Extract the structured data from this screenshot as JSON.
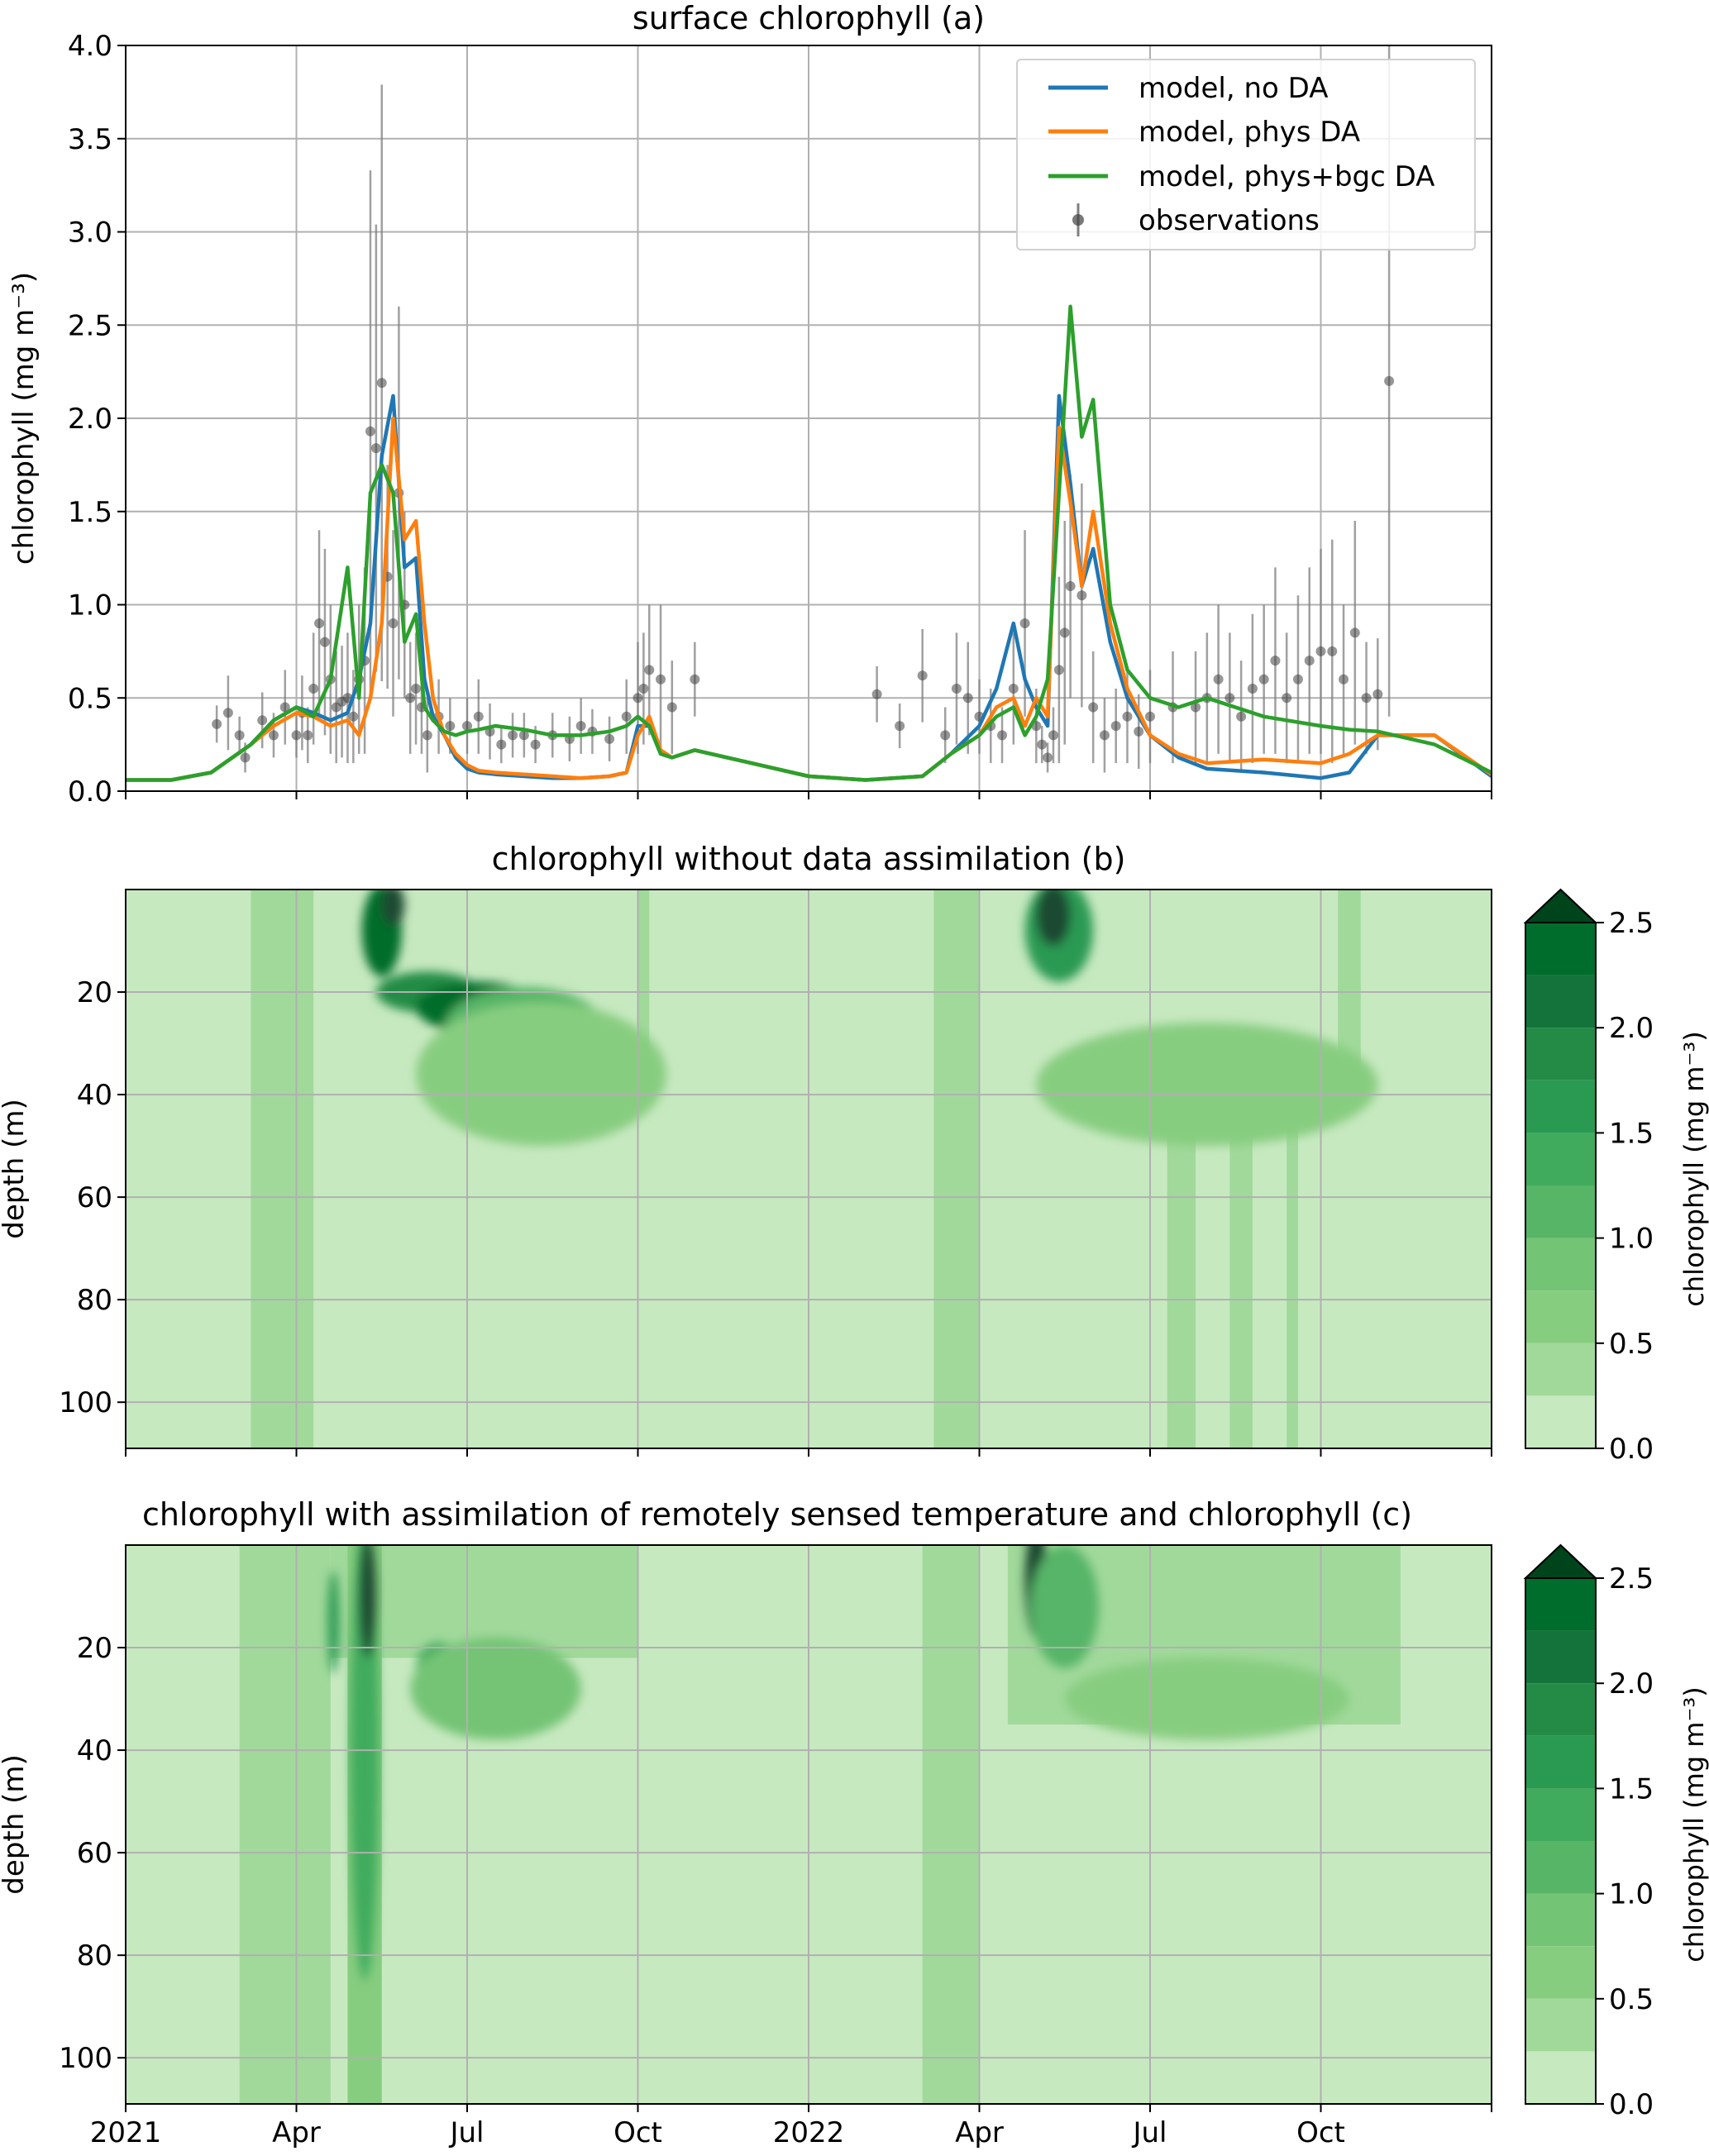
{
  "colors": {
    "no_da": "#1f77b4",
    "phys_da": "#ff7f0e",
    "phys_bgc_da": "#2ca02c",
    "observations": "#404040",
    "grid": "#b0b0b0",
    "cmap": [
      "#c7e9c0",
      "#a1d99b",
      "#87cd80",
      "#74c476",
      "#56b567",
      "#41ab5d",
      "#2a9a52",
      "#238b45",
      "#13733a",
      "#006d2c",
      "#1a5c3a",
      "#1d4a30",
      "#00441b"
    ]
  },
  "chart_data": [
    {
      "panel": "a",
      "type": "line",
      "title": "surface chlorophyll (a)",
      "ylabel": "chlorophyll (mg m⁻³)",
      "ylim": [
        0,
        4
      ],
      "yticks": [
        "0.0",
        "0.5",
        "1.0",
        "1.5",
        "2.0",
        "2.5",
        "3.0",
        "3.5",
        "4.0"
      ],
      "ytick_values": [
        0,
        0.5,
        1,
        1.5,
        2,
        2.5,
        3,
        3.5,
        4
      ],
      "x_unit": "months since 2021-01-01",
      "xlim": [
        0,
        24
      ],
      "grid": true,
      "legend_placement": "top-right",
      "series": [
        {
          "name": "model, no DA",
          "color_key": "no_da",
          "x": [
            0,
            0.8,
            1.5,
            2.2,
            2.6,
            3.0,
            3.3,
            3.6,
            3.9,
            4.1,
            4.3,
            4.5,
            4.7,
            4.9,
            5.1,
            5.25,
            5.4,
            5.5,
            5.6,
            5.8,
            6.0,
            6.2,
            6.5,
            7.0,
            7.5,
            8.0,
            8.5,
            8.8,
            9.0,
            9.2,
            9.4,
            9.6,
            10,
            11,
            12,
            13,
            14,
            14.5,
            15,
            15.3,
            15.6,
            15.8,
            16.0,
            16.2,
            16.4,
            16.6,
            16.8,
            17.0,
            17.3,
            17.6,
            18,
            18.5,
            19,
            20,
            21,
            21.5,
            22,
            23,
            24
          ],
          "y": [
            0.06,
            0.06,
            0.1,
            0.25,
            0.38,
            0.45,
            0.42,
            0.38,
            0.42,
            0.6,
            0.9,
            1.8,
            2.12,
            1.2,
            1.25,
            0.6,
            0.4,
            0.35,
            0.3,
            0.18,
            0.12,
            0.1,
            0.09,
            0.08,
            0.07,
            0.07,
            0.08,
            0.1,
            0.35,
            0.35,
            0.2,
            0.18,
            0.22,
            0.15,
            0.08,
            0.06,
            0.08,
            0.2,
            0.35,
            0.55,
            0.9,
            0.6,
            0.45,
            0.35,
            2.12,
            1.65,
            1.1,
            1.3,
            0.8,
            0.5,
            0.3,
            0.18,
            0.12,
            0.1,
            0.07,
            0.1,
            0.3,
            0.3,
            0.08
          ]
        },
        {
          "name": "model, phys DA",
          "color_key": "phys_da",
          "x": [
            0,
            0.8,
            1.5,
            2.2,
            2.6,
            3.0,
            3.3,
            3.6,
            3.9,
            4.1,
            4.3,
            4.5,
            4.7,
            4.9,
            5.1,
            5.25,
            5.4,
            5.5,
            5.6,
            5.8,
            6.0,
            6.2,
            6.5,
            7.0,
            7.5,
            8.0,
            8.5,
            8.8,
            9.0,
            9.2,
            9.4,
            9.6,
            10,
            11,
            12,
            13,
            14,
            14.5,
            15,
            15.3,
            15.6,
            15.8,
            16.0,
            16.2,
            16.4,
            16.6,
            16.8,
            17.0,
            17.3,
            17.6,
            18,
            18.5,
            19,
            20,
            21,
            21.5,
            22,
            23,
            24
          ],
          "y": [
            0.06,
            0.06,
            0.1,
            0.25,
            0.35,
            0.42,
            0.4,
            0.35,
            0.38,
            0.3,
            0.5,
            0.9,
            2.0,
            1.35,
            1.45,
            0.9,
            0.5,
            0.4,
            0.3,
            0.2,
            0.14,
            0.11,
            0.1,
            0.09,
            0.08,
            0.07,
            0.08,
            0.1,
            0.3,
            0.4,
            0.22,
            0.18,
            0.22,
            0.15,
            0.08,
            0.06,
            0.08,
            0.2,
            0.3,
            0.45,
            0.5,
            0.35,
            0.5,
            0.4,
            1.95,
            1.55,
            1.1,
            1.5,
            0.9,
            0.55,
            0.3,
            0.2,
            0.15,
            0.17,
            0.15,
            0.2,
            0.3,
            0.3,
            0.09
          ]
        },
        {
          "name": "model, phys+bgc DA",
          "color_key": "phys_bgc_da",
          "x": [
            0,
            0.8,
            1.5,
            2.2,
            2.6,
            3.0,
            3.3,
            3.6,
            3.9,
            4.1,
            4.3,
            4.5,
            4.7,
            4.9,
            5.1,
            5.25,
            5.4,
            5.5,
            5.6,
            5.8,
            6.0,
            6.2,
            6.5,
            7.0,
            7.5,
            8.0,
            8.5,
            8.8,
            9.0,
            9.2,
            9.4,
            9.6,
            10,
            11,
            12,
            13,
            14,
            14.5,
            15,
            15.3,
            15.6,
            15.8,
            16.0,
            16.2,
            16.4,
            16.6,
            16.8,
            17.0,
            17.3,
            17.6,
            18,
            18.5,
            19,
            20,
            21,
            21.5,
            22,
            23,
            24
          ],
          "y": [
            0.06,
            0.06,
            0.1,
            0.25,
            0.38,
            0.45,
            0.4,
            0.6,
            1.2,
            0.5,
            1.6,
            1.75,
            1.6,
            0.8,
            0.95,
            0.45,
            0.38,
            0.35,
            0.32,
            0.3,
            0.32,
            0.33,
            0.35,
            0.33,
            0.3,
            0.3,
            0.32,
            0.35,
            0.4,
            0.35,
            0.2,
            0.18,
            0.22,
            0.15,
            0.08,
            0.06,
            0.08,
            0.2,
            0.3,
            0.4,
            0.45,
            0.3,
            0.4,
            0.6,
            1.6,
            2.6,
            1.9,
            2.1,
            1.0,
            0.65,
            0.5,
            0.45,
            0.5,
            0.4,
            0.35,
            0.33,
            0.32,
            0.25,
            0.1
          ]
        },
        {
          "name": "observations",
          "color_key": "observations",
          "kind": "errorbar",
          "x": [
            1.6,
            1.8,
            2.0,
            2.1,
            2.4,
            2.6,
            2.8,
            3.0,
            3.1,
            3.2,
            3.3,
            3.4,
            3.5,
            3.6,
            3.7,
            3.8,
            3.9,
            4.0,
            4.1,
            4.2,
            4.3,
            4.4,
            4.5,
            4.6,
            4.7,
            4.8,
            4.9,
            5.0,
            5.1,
            5.2,
            5.3,
            5.5,
            5.7,
            6.0,
            6.2,
            6.4,
            6.6,
            6.8,
            7.0,
            7.2,
            7.5,
            7.8,
            8.0,
            8.2,
            8.5,
            8.8,
            9.0,
            9.1,
            9.2,
            9.4,
            9.6,
            10.0,
            13.2,
            13.6,
            14.0,
            14.4,
            14.6,
            14.8,
            15.0,
            15.2,
            15.4,
            15.6,
            15.8,
            16.0,
            16.1,
            16.2,
            16.3,
            16.4,
            16.5,
            16.6,
            16.8,
            17.0,
            17.2,
            17.4,
            17.6,
            17.8,
            18.0,
            18.4,
            18.8,
            19.0,
            19.2,
            19.4,
            19.6,
            19.8,
            20.0,
            20.2,
            20.4,
            20.6,
            20.8,
            21.0,
            21.2,
            21.4,
            21.6,
            21.8,
            22.0,
            22.2
          ],
          "y": [
            0.36,
            0.42,
            0.3,
            0.18,
            0.38,
            0.3,
            0.45,
            0.3,
            0.42,
            0.3,
            0.55,
            0.9,
            0.8,
            0.6,
            0.45,
            0.48,
            0.5,
            0.4,
            0.6,
            0.7,
            1.93,
            1.84,
            2.19,
            1.15,
            0.9,
            1.6,
            1.0,
            0.5,
            0.55,
            0.45,
            0.3,
            0.4,
            0.35,
            0.35,
            0.4,
            0.32,
            0.25,
            0.3,
            0.3,
            0.25,
            0.3,
            0.28,
            0.35,
            0.32,
            0.28,
            0.4,
            0.5,
            0.55,
            0.65,
            0.6,
            0.45,
            0.6,
            0.52,
            0.35,
            0.62,
            0.3,
            0.55,
            0.5,
            0.4,
            0.35,
            0.3,
            0.55,
            0.9,
            0.35,
            0.25,
            0.18,
            0.3,
            0.65,
            0.85,
            1.1,
            1.05,
            0.45,
            0.3,
            0.35,
            0.4,
            0.32,
            0.4,
            0.45,
            0.45,
            0.5,
            0.6,
            0.5,
            0.4,
            0.55,
            0.6,
            0.7,
            0.5,
            0.6,
            0.7,
            0.75,
            0.75,
            0.6,
            0.85,
            0.5,
            0.52,
            2.2
          ],
          "err": [
            0.1,
            0.2,
            0.1,
            0.08,
            0.15,
            0.12,
            0.2,
            0.12,
            0.2,
            0.15,
            0.3,
            0.5,
            0.5,
            0.4,
            0.3,
            0.3,
            0.35,
            0.25,
            0.4,
            0.5,
            1.4,
            1.2,
            1.6,
            0.6,
            0.5,
            1.0,
            0.5,
            0.3,
            0.3,
            0.25,
            0.2,
            0.2,
            0.15,
            0.15,
            0.2,
            0.15,
            0.1,
            0.12,
            0.12,
            0.1,
            0.12,
            0.12,
            0.15,
            0.12,
            0.12,
            0.2,
            0.3,
            0.3,
            0.35,
            0.4,
            0.25,
            0.2,
            0.15,
            0.12,
            0.25,
            0.15,
            0.3,
            0.3,
            0.2,
            0.2,
            0.15,
            0.3,
            0.5,
            0.2,
            0.1,
            0.08,
            0.15,
            0.5,
            0.6,
            0.6,
            0.6,
            0.3,
            0.2,
            0.2,
            0.25,
            0.2,
            0.25,
            0.3,
            0.3,
            0.35,
            0.4,
            0.35,
            0.3,
            0.4,
            0.4,
            0.5,
            0.35,
            0.45,
            0.5,
            0.55,
            0.6,
            0.4,
            0.6,
            0.3,
            0.3,
            1.8
          ]
        }
      ]
    },
    {
      "panel": "b",
      "type": "heatmap",
      "title": "chlorophyll without data assimilation (b)",
      "ylabel": "depth (m)",
      "ylim": [
        109,
        0
      ],
      "yticks": [
        "20",
        "40",
        "60",
        "80",
        "100"
      ],
      "ytick_values": [
        20,
        40,
        60,
        80,
        100
      ],
      "xlim": [
        0,
        24
      ],
      "colorbar_label": "chlorophyll (mg m⁻³)",
      "colorbar_ticks": [
        "0.0",
        "0.5",
        "1.0",
        "1.5",
        "2.0",
        "2.5"
      ],
      "colorbar_levels": [
        0,
        0.25,
        0.5,
        0.75,
        1.0,
        1.25,
        1.5,
        1.75,
        2.0,
        2.25,
        2.5
      ],
      "columns": [
        {
          "x0": 2.2,
          "x1": 3.3,
          "d0": 0,
          "d1": 109,
          "level": 1
        },
        {
          "x0": 14.2,
          "x1": 15.0,
          "d0": 0,
          "d1": 109,
          "level": 1
        },
        {
          "x0": 9.0,
          "x1": 9.2,
          "d0": 0,
          "d1": 38,
          "level": 1
        },
        {
          "x0": 21.3,
          "x1": 21.7,
          "d0": 0,
          "d1": 38,
          "level": 1
        },
        {
          "x0": 18.3,
          "x1": 18.8,
          "d0": 40,
          "d1": 109,
          "level": 1
        },
        {
          "x0": 19.4,
          "x1": 19.8,
          "d0": 40,
          "d1": 109,
          "level": 1
        },
        {
          "x0": 20.4,
          "x1": 20.6,
          "d0": 40,
          "d1": 109,
          "level": 1
        }
      ],
      "blobs": [
        {
          "x": 4.5,
          "d": 8,
          "rx": 0.35,
          "rd": 9,
          "level": 9
        },
        {
          "x": 4.7,
          "d": 3,
          "rx": 0.2,
          "rd": 4,
          "level": 11
        },
        {
          "x": 5.3,
          "d": 20,
          "rx": 0.9,
          "rd": 4,
          "level": 7
        },
        {
          "x": 6.2,
          "d": 23,
          "rx": 1.1,
          "rd": 5,
          "level": 9
        },
        {
          "x": 7.0,
          "d": 27,
          "rx": 1.4,
          "rd": 8,
          "level": 4
        },
        {
          "x": 7.0,
          "d": 28,
          "rx": 0.8,
          "rd": 4,
          "level": 10
        },
        {
          "x": 7.3,
          "d": 36,
          "rx": 2.2,
          "rd": 14,
          "level": 2
        },
        {
          "x": 16.4,
          "d": 8,
          "rx": 0.6,
          "rd": 10,
          "level": 6
        },
        {
          "x": 16.3,
          "d": 5,
          "rx": 0.3,
          "rd": 6,
          "level": 11
        },
        {
          "x": 19.0,
          "d": 31,
          "rx": 2.0,
          "rd": 5,
          "level": 6
        },
        {
          "x": 19.2,
          "d": 31,
          "rx": 1.3,
          "rd": 3,
          "level": 10
        },
        {
          "x": 19.0,
          "d": 38,
          "rx": 3.0,
          "rd": 12,
          "level": 2
        }
      ]
    },
    {
      "panel": "c",
      "type": "heatmap",
      "title": "chlorophyll with assimilation of remotely sensed temperature and chlorophyll (c)",
      "ylabel": "depth (m)",
      "ylim": [
        109,
        0
      ],
      "yticks": [
        "20",
        "40",
        "60",
        "80",
        "100"
      ],
      "ytick_values": [
        20,
        40,
        60,
        80,
        100
      ],
      "xlim": [
        0,
        24
      ],
      "xticks": [
        "2021",
        "Apr",
        "Jul",
        "Oct",
        "2022",
        "Apr",
        "Jul",
        "Oct"
      ],
      "xtick_values": [
        0,
        3,
        6,
        9,
        12,
        15,
        18,
        21
      ],
      "colorbar_label": "chlorophyll (mg m⁻³)",
      "colorbar_ticks": [
        "0.0",
        "0.5",
        "1.0",
        "1.5",
        "2.0",
        "2.5"
      ],
      "colorbar_levels": [
        0,
        0.25,
        0.5,
        0.75,
        1.0,
        1.25,
        1.5,
        1.75,
        2.0,
        2.25,
        2.5
      ],
      "columns": [
        {
          "x0": 2.0,
          "x1": 3.6,
          "d0": 0,
          "d1": 109,
          "level": 1
        },
        {
          "x0": 14.0,
          "x1": 15.0,
          "d0": 0,
          "d1": 109,
          "level": 1
        },
        {
          "x0": 3.6,
          "x1": 9.0,
          "d0": 0,
          "d1": 22,
          "level": 1
        },
        {
          "x0": 15.5,
          "x1": 22.4,
          "d0": 0,
          "d1": 35,
          "level": 1
        },
        {
          "x0": 3.9,
          "x1": 4.5,
          "d0": 0,
          "d1": 109,
          "level": 2
        }
      ],
      "blobs": [
        {
          "x": 4.2,
          "d": 40,
          "rx": 0.25,
          "rd": 45,
          "level": 5
        },
        {
          "x": 4.25,
          "d": 10,
          "rx": 0.15,
          "rd": 12,
          "level": 11
        },
        {
          "x": 3.65,
          "d": 15,
          "rx": 0.1,
          "rd": 10,
          "level": 6
        },
        {
          "x": 5.5,
          "d": 24,
          "rx": 0.4,
          "rd": 5,
          "level": 5
        },
        {
          "x": 6.5,
          "d": 28,
          "rx": 1.5,
          "rd": 10,
          "level": 3
        },
        {
          "x": 16.0,
          "d": 7,
          "rx": 0.2,
          "rd": 11,
          "level": 11
        },
        {
          "x": 16.5,
          "d": 12,
          "rx": 0.6,
          "rd": 12,
          "level": 4
        },
        {
          "x": 19.0,
          "d": 30,
          "rx": 2.5,
          "rd": 8,
          "level": 2
        }
      ]
    }
  ]
}
